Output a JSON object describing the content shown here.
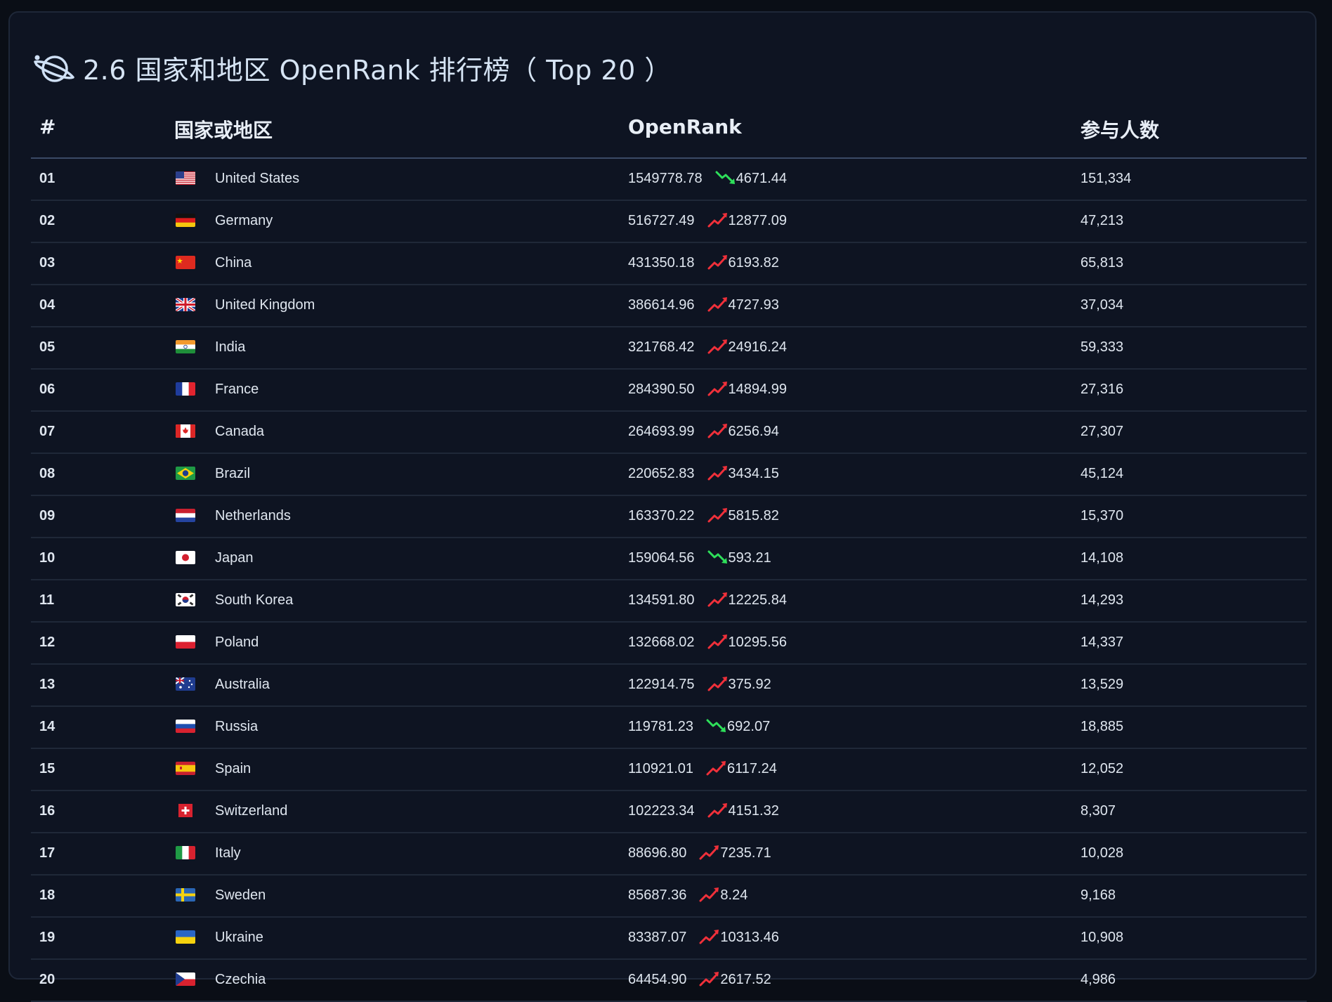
{
  "title": "2.6 国家和地区 OpenRank 排行榜（ Top 20 ）",
  "headers": {
    "rank": "#",
    "country": "国家或地区",
    "openrank": "OpenRank",
    "people": "参与人数"
  },
  "colors": {
    "up": "#f0303a",
    "down": "#2ee05a"
  },
  "rows": [
    {
      "rank": "01",
      "country": "United States",
      "flag": "us",
      "openrank": "1549778.78",
      "trend": "down",
      "delta": "4671.44",
      "people": "151,334"
    },
    {
      "rank": "02",
      "country": "Germany",
      "flag": "de",
      "openrank": "516727.49",
      "trend": "up",
      "delta": "12877.09",
      "people": "47,213"
    },
    {
      "rank": "03",
      "country": "China",
      "flag": "cn",
      "openrank": "431350.18",
      "trend": "up",
      "delta": "6193.82",
      "people": "65,813"
    },
    {
      "rank": "04",
      "country": "United Kingdom",
      "flag": "gb",
      "openrank": "386614.96",
      "trend": "up",
      "delta": "4727.93",
      "people": "37,034"
    },
    {
      "rank": "05",
      "country": "India",
      "flag": "in",
      "openrank": "321768.42",
      "trend": "up",
      "delta": "24916.24",
      "people": "59,333"
    },
    {
      "rank": "06",
      "country": "France",
      "flag": "fr",
      "openrank": "284390.50",
      "trend": "up",
      "delta": "14894.99",
      "people": "27,316"
    },
    {
      "rank": "07",
      "country": "Canada",
      "flag": "ca",
      "openrank": "264693.99",
      "trend": "up",
      "delta": "6256.94",
      "people": "27,307"
    },
    {
      "rank": "08",
      "country": "Brazil",
      "flag": "br",
      "openrank": "220652.83",
      "trend": "up",
      "delta": "3434.15",
      "people": "45,124"
    },
    {
      "rank": "09",
      "country": "Netherlands",
      "flag": "nl",
      "openrank": "163370.22",
      "trend": "up",
      "delta": "5815.82",
      "people": "15,370"
    },
    {
      "rank": "10",
      "country": "Japan",
      "flag": "jp",
      "openrank": "159064.56",
      "trend": "down",
      "delta": "593.21",
      "people": "14,108"
    },
    {
      "rank": "11",
      "country": "South Korea",
      "flag": "kr",
      "openrank": "134591.80",
      "trend": "up",
      "delta": "12225.84",
      "people": "14,293"
    },
    {
      "rank": "12",
      "country": "Poland",
      "flag": "pl",
      "openrank": "132668.02",
      "trend": "up",
      "delta": "10295.56",
      "people": "14,337"
    },
    {
      "rank": "13",
      "country": "Australia",
      "flag": "au",
      "openrank": "122914.75",
      "trend": "up",
      "delta": "375.92",
      "people": "13,529"
    },
    {
      "rank": "14",
      "country": "Russia",
      "flag": "ru",
      "openrank": "119781.23",
      "trend": "down",
      "delta": "692.07",
      "people": "18,885"
    },
    {
      "rank": "15",
      "country": "Spain",
      "flag": "es",
      "openrank": "110921.01",
      "trend": "up",
      "delta": "6117.24",
      "people": "12,052"
    },
    {
      "rank": "16",
      "country": "Switzerland",
      "flag": "ch",
      "openrank": "102223.34",
      "trend": "up",
      "delta": "4151.32",
      "people": "8,307"
    },
    {
      "rank": "17",
      "country": "Italy",
      "flag": "it",
      "openrank": "88696.80",
      "trend": "up",
      "delta": "7235.71",
      "people": "10,028"
    },
    {
      "rank": "18",
      "country": "Sweden",
      "flag": "se",
      "openrank": "85687.36",
      "trend": "up",
      "delta": "8.24",
      "people": "9,168"
    },
    {
      "rank": "19",
      "country": "Ukraine",
      "flag": "ua",
      "openrank": "83387.07",
      "trend": "up",
      "delta": "10313.46",
      "people": "10,908"
    },
    {
      "rank": "20",
      "country": "Czechia",
      "flag": "cz",
      "openrank": "64454.90",
      "trend": "up",
      "delta": "2617.52",
      "people": "4,986"
    }
  ]
}
